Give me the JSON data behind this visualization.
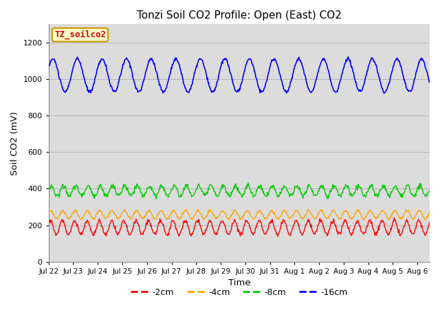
{
  "title": "Tonzi Soil CO2 Profile: Open (East) CO2",
  "xlabel": "Time",
  "ylabel": "Soil CO2 (mV)",
  "ylim": [
    0,
    1300
  ],
  "yticks": [
    0,
    200,
    400,
    600,
    800,
    1000,
    1200
  ],
  "bg_color": "#dcdcdc",
  "fig_bg_color": "#ffffff",
  "label_box_text": "TZ_soilco2",
  "label_box_color": "#ffffcc",
  "label_box_text_color": "#cc0000",
  "label_box_edge_color": "#cc9900",
  "legend_entries": [
    "-2cm",
    "-4cm",
    "-8cm",
    "-16cm"
  ],
  "line_colors": [
    "#ff0000",
    "#ffa500",
    "#00cc00",
    "#0000ff"
  ],
  "xtick_labels": [
    "Jul 22",
    "Jul 23",
    "Jul 24",
    "Jul 25",
    "Jul 26",
    "Jul 27",
    "Jul 28",
    "Jul 29",
    "Jul 30",
    "Jul 31",
    "Aug 1",
    "Aug 2",
    "Aug 3",
    "Aug 4",
    "Aug 5",
    "Aug 6"
  ],
  "series": {
    "blue_mean": 1020,
    "blue_amp": 90,
    "blue_period": 1.0,
    "green_mean": 388,
    "green_amp": 28,
    "green_period": 0.5,
    "orange_mean": 258,
    "orange_amp": 22,
    "orange_period": 0.5,
    "red_mean": 187,
    "red_amp": 38,
    "red_period": 0.5
  }
}
